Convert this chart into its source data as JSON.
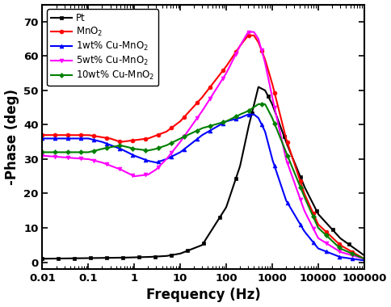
{
  "title": "",
  "xlabel": "Frequency (Hz)",
  "ylabel": "-Phase (deg)",
  "xlim": [
    0.01,
    100000
  ],
  "ylim": [
    -2,
    75
  ],
  "yticks": [
    0,
    10,
    20,
    30,
    40,
    50,
    60,
    70
  ],
  "xtick_labels": [
    "0.01",
    "0.1",
    "1",
    "10",
    "100",
    "1000",
    "10000",
    "100000"
  ],
  "xtick_vals": [
    0.01,
    0.1,
    1,
    10,
    100,
    1000,
    10000,
    100000
  ],
  "series": {
    "Pt": {
      "color": "#000000",
      "marker": "s",
      "markersize": 3.5,
      "linewidth": 1.5
    },
    "MnO$_2$": {
      "color": "#FF0000",
      "marker": "o",
      "markersize": 3.5,
      "linewidth": 1.5
    },
    "1wt% Cu-MnO$_2$": {
      "color": "#0000FF",
      "marker": "^",
      "markersize": 3.5,
      "linewidth": 1.5
    },
    "5wt% Cu-MnO$_2$": {
      "color": "#FF00FF",
      "marker": "v",
      "markersize": 3.5,
      "linewidth": 1.5
    },
    "10wt% Cu-MnO$_2$": {
      "color": "#008000",
      "marker": "D",
      "markersize": 3.0,
      "linewidth": 1.5
    }
  },
  "background_color": "#ffffff",
  "legend_fontsize": 8.5,
  "axis_label_fontsize": 12,
  "tick_fontsize": 9.5
}
